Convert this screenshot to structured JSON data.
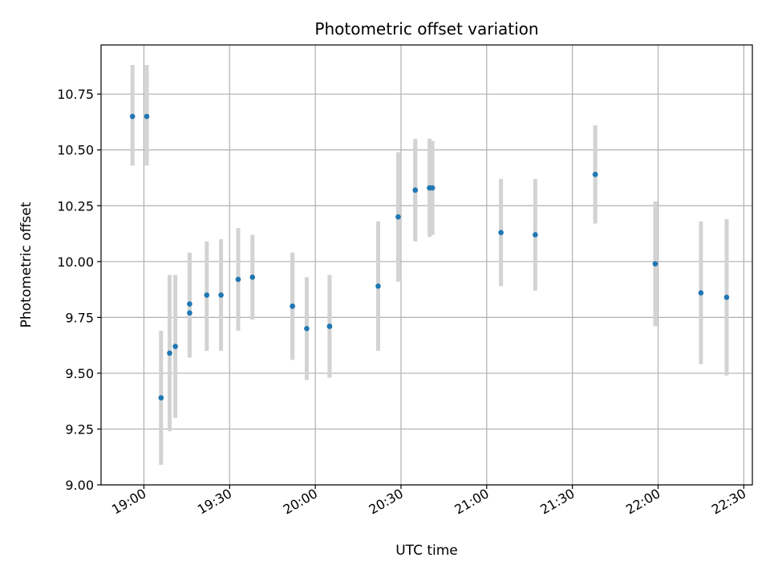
{
  "chart_data": {
    "type": "scatter",
    "title": "Photometric offset variation",
    "xlabel": "UTC time",
    "ylabel": "Photometric offset",
    "xlim": [
      "18:45",
      "22:33"
    ],
    "ylim": [
      9.0,
      10.97
    ],
    "x_ticks": [
      "19:00",
      "19:30",
      "20:00",
      "20:30",
      "21:00",
      "21:30",
      "22:00",
      "22:30"
    ],
    "y_ticks": [
      "9.00",
      "9.25",
      "9.50",
      "9.75",
      "10.00",
      "10.25",
      "10.50",
      "10.75"
    ],
    "grid": true,
    "colors": {
      "points": "#1f77b4",
      "errorbars": "#d3d3d3",
      "grid": "#b0b0b0"
    },
    "points": [
      {
        "x": "18:56",
        "y": 10.65,
        "err_low": 0.22,
        "err_high": 0.23
      },
      {
        "x": "19:01",
        "y": 10.65,
        "err_low": 0.22,
        "err_high": 0.23
      },
      {
        "x": "19:06",
        "y": 9.39,
        "err_low": 0.3,
        "err_high": 0.3
      },
      {
        "x": "19:09",
        "y": 9.59,
        "err_low": 0.35,
        "err_high": 0.35
      },
      {
        "x": "19:11",
        "y": 9.62,
        "err_low": 0.32,
        "err_high": 0.32
      },
      {
        "x": "19:16",
        "y": 9.77,
        "err_low": 0.19,
        "err_high": 0.26
      },
      {
        "x": "19:16",
        "y": 9.81,
        "err_low": 0.24,
        "err_high": 0.23
      },
      {
        "x": "19:22",
        "y": 9.85,
        "err_low": 0.25,
        "err_high": 0.24
      },
      {
        "x": "19:27",
        "y": 9.85,
        "err_low": 0.25,
        "err_high": 0.25
      },
      {
        "x": "19:33",
        "y": 9.92,
        "err_low": 0.23,
        "err_high": 0.23
      },
      {
        "x": "19:38",
        "y": 9.93,
        "err_low": 0.19,
        "err_high": 0.19
      },
      {
        "x": "19:52",
        "y": 9.8,
        "err_low": 0.23,
        "err_high": 0.23
      },
      {
        "x": "19:52",
        "y": 9.8,
        "err_low": 0.24,
        "err_high": 0.24
      },
      {
        "x": "19:57",
        "y": 9.7,
        "err_low": 0.23,
        "err_high": 0.23
      },
      {
        "x": "20:05",
        "y": 9.71,
        "err_low": 0.23,
        "err_high": 0.23
      },
      {
        "x": "20:05",
        "y": 9.71,
        "err_low": 0.23,
        "err_high": 0.23
      },
      {
        "x": "20:22",
        "y": 9.89,
        "err_low": 0.29,
        "err_high": 0.29
      },
      {
        "x": "20:29",
        "y": 10.2,
        "err_low": 0.29,
        "err_high": 0.29
      },
      {
        "x": "20:35",
        "y": 10.32,
        "err_low": 0.23,
        "err_high": 0.23
      },
      {
        "x": "20:35",
        "y": 10.32,
        "err_low": 0.22,
        "err_high": 0.22
      },
      {
        "x": "20:40",
        "y": 10.33,
        "err_low": 0.2,
        "err_high": 0.2
      },
      {
        "x": "20:40",
        "y": 10.33,
        "err_low": 0.22,
        "err_high": 0.22
      },
      {
        "x": "20:41",
        "y": 10.33,
        "err_low": 0.21,
        "err_high": 0.21
      },
      {
        "x": "21:05",
        "y": 10.13,
        "err_low": 0.24,
        "err_high": 0.24
      },
      {
        "x": "21:17",
        "y": 10.12,
        "err_low": 0.25,
        "err_high": 0.25
      },
      {
        "x": "21:38",
        "y": 10.39,
        "err_low": 0.22,
        "err_high": 0.22
      },
      {
        "x": "21:38",
        "y": 10.39,
        "err_low": 0.21,
        "err_high": 0.21
      },
      {
        "x": "21:59",
        "y": 9.99,
        "err_low": 0.28,
        "err_high": 0.28
      },
      {
        "x": "22:15",
        "y": 9.86,
        "err_low": 0.32,
        "err_high": 0.32
      },
      {
        "x": "22:24",
        "y": 9.84,
        "err_low": 0.35,
        "err_high": 0.35
      }
    ]
  }
}
